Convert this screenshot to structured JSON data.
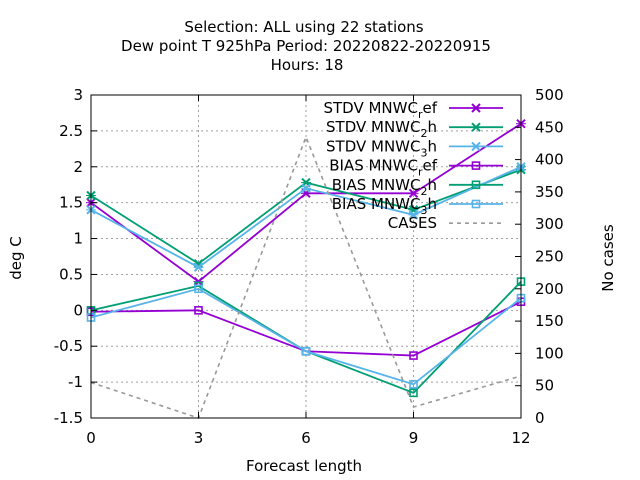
{
  "chart_data": {
    "type": "line",
    "title_lines": [
      "Selection: ALL using    22 stations",
      "Dew point T 925hPa   Period: 20220822-20220915",
      "Hours:  18"
    ],
    "xlabel": "Forecast length",
    "ylabel": "deg C",
    "y2label": "No cases",
    "x": [
      0,
      3,
      6,
      9,
      12
    ],
    "xlim": [
      0,
      12
    ],
    "ylim": [
      -1.5,
      3
    ],
    "y2lim": [
      0,
      500
    ],
    "xticks": [
      "0",
      "3",
      "6",
      "9",
      "12"
    ],
    "yticks": [
      "-1.5",
      "-1",
      "-0.5",
      "0",
      "0.5",
      "1",
      "1.5",
      "2",
      "2.5",
      "3"
    ],
    "y2ticks": [
      "0",
      "50",
      "100",
      "150",
      "200",
      "250",
      "300",
      "350",
      "400",
      "450",
      "500"
    ],
    "grid": true,
    "legend_position": "top-right",
    "series": [
      {
        "legend_main": "STDV MNWC",
        "legend_sub": "r",
        "legend_tail": "ef",
        "values": [
          1.5,
          0.4,
          1.63,
          1.63,
          2.6
        ],
        "color": "#9400d3",
        "marker": "x",
        "axis": "y1"
      },
      {
        "legend_main": "STDV MNWC",
        "legend_sub": "2",
        "legend_tail": "h",
        "values": [
          1.6,
          0.65,
          1.78,
          1.4,
          1.96
        ],
        "color": "#009e73",
        "marker": "x",
        "axis": "y1"
      },
      {
        "legend_main": "STDV MNWC",
        "legend_sub": "3",
        "legend_tail": "h",
        "values": [
          1.4,
          0.6,
          1.7,
          1.33,
          2.0
        ],
        "color": "#56b4e9",
        "marker": "x",
        "axis": "y1"
      },
      {
        "legend_main": "BIAS MNWC",
        "legend_sub": "r",
        "legend_tail": "ef",
        "values": [
          -0.02,
          0.0,
          -0.57,
          -0.63,
          0.12
        ],
        "color": "#9400d3",
        "marker": "square",
        "axis": "y1"
      },
      {
        "legend_main": "BIAS MNWC",
        "legend_sub": "2",
        "legend_tail": "h",
        "values": [
          0.0,
          0.34,
          -0.57,
          -1.15,
          0.4
        ],
        "color": "#009e73",
        "marker": "square",
        "axis": "y1"
      },
      {
        "legend_main": "BIAS MNWC",
        "legend_sub": "3",
        "legend_tail": "h",
        "values": [
          -0.1,
          0.3,
          -0.57,
          -1.03,
          0.17
        ],
        "color": "#56b4e9",
        "marker": "square",
        "axis": "y1"
      },
      {
        "legend_main": "CASES",
        "legend_sub": "",
        "legend_tail": "",
        "values": [
          55,
          0,
          435,
          17,
          65
        ],
        "color": "#999999",
        "marker": "none",
        "dashed": true,
        "axis": "y2"
      }
    ]
  }
}
